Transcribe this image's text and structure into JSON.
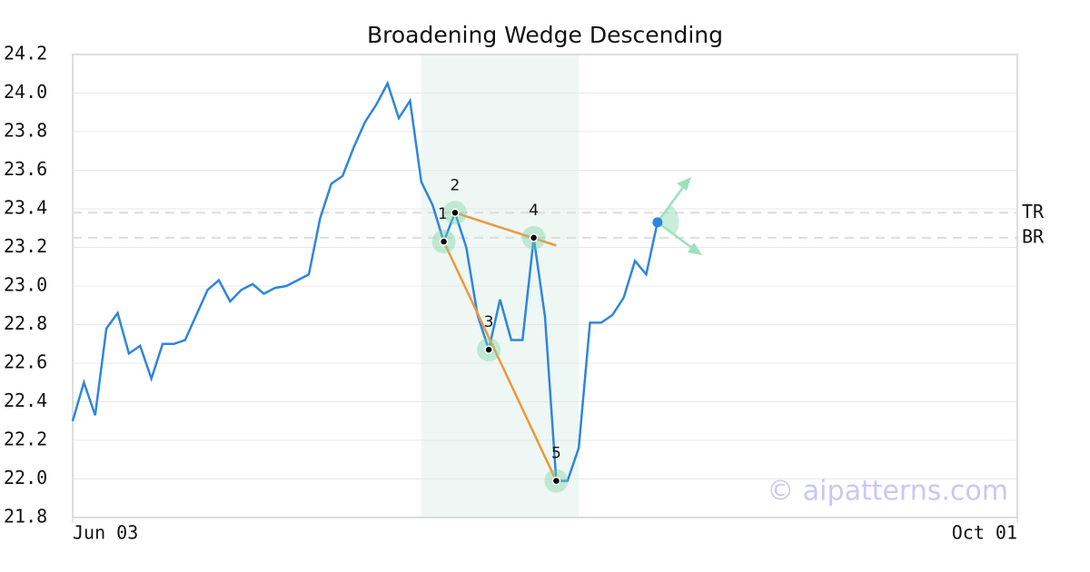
{
  "chart_data": {
    "type": "line",
    "title": "Broadening Wedge Descending",
    "x": [
      0,
      1,
      2,
      3,
      4,
      5,
      6,
      7,
      8,
      9,
      10,
      11,
      12,
      13,
      14,
      15,
      16,
      17,
      18,
      19,
      20,
      21,
      22,
      23,
      24,
      25,
      26,
      27,
      28,
      29,
      30,
      31,
      32,
      33,
      34,
      35,
      36,
      37,
      38,
      39,
      40,
      41,
      42,
      43,
      44,
      45,
      46,
      47,
      48,
      49,
      50,
      51,
      52
    ],
    "series": [
      {
        "color": "#2e86de",
        "values": [
          22.3,
          22.5,
          22.33,
          22.78,
          22.86,
          22.65,
          22.69,
          22.52,
          22.7,
          22.7,
          22.72,
          22.85,
          22.98,
          23.03,
          22.92,
          22.98,
          23.01,
          22.96,
          22.99,
          23.0,
          23.03,
          23.06,
          23.35,
          23.53,
          23.57,
          23.72,
          23.85,
          23.94,
          24.05,
          23.87,
          23.96,
          23.54,
          23.42,
          23.23,
          23.38,
          23.2,
          22.85,
          22.67,
          22.93,
          22.72,
          22.72,
          23.25,
          22.84,
          21.99,
          21.99,
          22.16,
          22.81,
          22.81,
          22.85,
          22.94,
          23.13,
          23.06,
          23.33
        ]
      }
    ],
    "xlim": [
      0,
      84
    ],
    "xticks": [
      {
        "value": 0,
        "label": "Jun 03"
      },
      {
        "value": 84,
        "label": "Oct 01"
      }
    ],
    "ylim": [
      21.8,
      24.2
    ],
    "yticks": [
      21.8,
      {
        "value": 22,
        "label": "22.0"
      },
      22.2,
      22.4,
      22.6,
      22.8,
      {
        "value": 23,
        "label": "23.0"
      },
      23.2,
      23.4,
      23.6,
      23.8,
      {
        "value": 24,
        "label": "24.0"
      },
      24.2
    ],
    "grid": true,
    "highlight_x": [
      31,
      45
    ],
    "pattern_points": {
      "labels": [
        "1",
        "2",
        "3",
        "4",
        "5"
      ],
      "x": [
        33,
        34,
        37,
        41,
        43
      ],
      "y": [
        23.23,
        23.38,
        22.67,
        23.25,
        21.99
      ]
    },
    "trend_lines": [
      {
        "x": [
          34,
          43
        ],
        "y": [
          23.38,
          23.21
        ]
      },
      {
        "x": [
          33,
          43
        ],
        "y": [
          23.23,
          21.99
        ]
      }
    ],
    "levels": [
      {
        "label": "TR",
        "value": 23.38
      },
      {
        "label": "BR",
        "value": 23.25
      }
    ],
    "watermark": "© aipatterns.com"
  }
}
